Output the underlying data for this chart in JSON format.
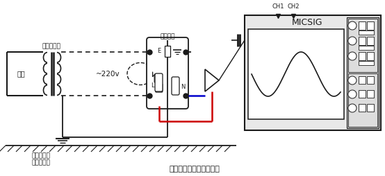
{
  "title": "火线，零线和地线的关系",
  "text_supplier": "供电变压器",
  "text_high": "高压",
  "text_220v": "~220v",
  "text_socket": "电源插座",
  "text_E": "E",
  "text_L": "L",
  "text_N": "N",
  "text_ground_label1": "供电变压器",
  "text_ground_label2": "零线接地点",
  "text_micsig": "MICSIG",
  "text_ch1": "CH1",
  "text_ch2": "CH2",
  "bg_color": "#ffffff",
  "line_color": "#1a1a1a",
  "red_color": "#cc0000",
  "blue_color": "#0000cc",
  "fig_width": 5.54,
  "fig_height": 2.54,
  "dpi": 100
}
